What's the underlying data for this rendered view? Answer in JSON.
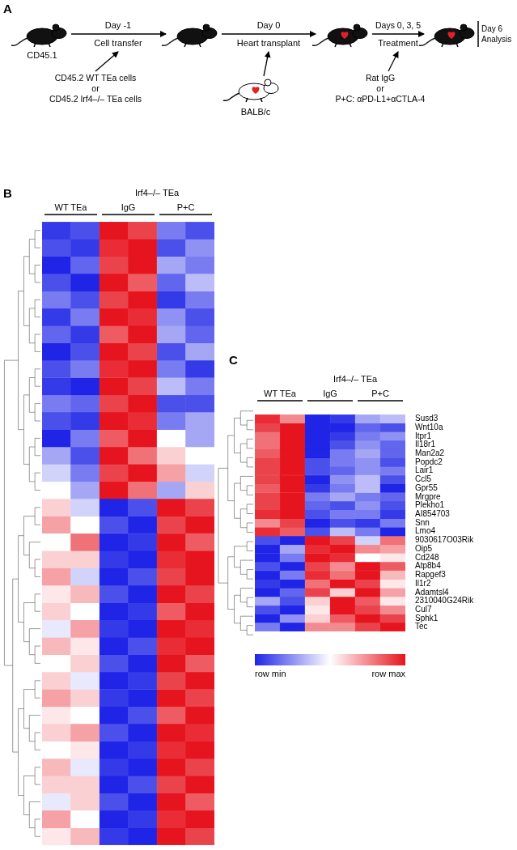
{
  "schematic": {
    "panel": "A",
    "start_mouse": "CD45.1",
    "transfer_day": "Day -1",
    "transfer": "Cell transfer",
    "cells": [
      "CD45.2 WT TEa cells",
      "or",
      "CD45.2 Irf4–/– TEa cells"
    ],
    "transplant_day": "Day 0",
    "transplant": "Heart transplant",
    "donor": "BALB/c",
    "treatment_days": "Days 0, 3, 5",
    "treatment": "Treatment",
    "treatments": [
      "Rat IgG",
      "or",
      "P+C: αPD-L1+αCTLA-4"
    ],
    "end": [
      "Day 6",
      "Analysis"
    ]
  },
  "color_scale": {
    "colors": [
      "#1f24e6",
      "#ffffff",
      "#e6141e"
    ],
    "range": [
      0,
      1
    ]
  },
  "chart_data": [
    {
      "type": "heatmap",
      "panel": "B",
      "tick_labels": false,
      "column_groups": [
        {
          "label": "WT TEa",
          "columns": 2
        },
        {
          "label": "Irf4–/– TEa",
          "subgroups": [
            {
              "label": "IgG",
              "columns": 2
            },
            {
              "label": "P+C",
              "columns": 2
            }
          ]
        }
      ],
      "row_clusters": [
        16,
        20
      ],
      "cells": [
        [
          0.05,
          0.1,
          1.0,
          0.9,
          0.2,
          0.1
        ],
        [
          0.1,
          0.05,
          0.95,
          1.0,
          0.1,
          0.25
        ],
        [
          0.0,
          0.15,
          0.9,
          1.0,
          0.3,
          0.2
        ],
        [
          0.1,
          0.0,
          1.0,
          0.85,
          0.15,
          0.35
        ],
        [
          0.2,
          0.1,
          0.9,
          1.0,
          0.05,
          0.2
        ],
        [
          0.05,
          0.2,
          1.0,
          0.95,
          0.25,
          0.1
        ],
        [
          0.15,
          0.05,
          0.85,
          1.0,
          0.3,
          0.15
        ],
        [
          0.0,
          0.1,
          1.0,
          0.9,
          0.1,
          0.3
        ],
        [
          0.1,
          0.2,
          0.95,
          1.0,
          0.2,
          0.05
        ],
        [
          0.05,
          0.0,
          1.0,
          0.9,
          0.35,
          0.2
        ],
        [
          0.2,
          0.15,
          0.9,
          1.0,
          0.1,
          0.1
        ],
        [
          0.1,
          0.05,
          1.0,
          0.95,
          0.2,
          0.3
        ],
        [
          0.0,
          0.2,
          0.85,
          1.0,
          0.5,
          0.3
        ],
        [
          0.3,
          0.1,
          1.0,
          0.8,
          0.6,
          0.5
        ],
        [
          0.4,
          0.2,
          0.9,
          1.0,
          0.7,
          0.4
        ],
        [
          0.5,
          0.3,
          1.0,
          0.8,
          0.3,
          0.6
        ],
        [
          0.6,
          0.4,
          0.0,
          0.1,
          1.0,
          0.9
        ],
        [
          0.7,
          0.5,
          0.1,
          0.0,
          0.9,
          1.0
        ],
        [
          0.5,
          0.8,
          0.0,
          0.05,
          1.0,
          0.85
        ],
        [
          0.6,
          0.6,
          0.05,
          0.0,
          0.95,
          1.0
        ],
        [
          0.7,
          0.4,
          0.0,
          0.1,
          0.9,
          1.0
        ],
        [
          0.55,
          0.65,
          0.1,
          0.0,
          1.0,
          0.9
        ],
        [
          0.6,
          0.5,
          0.0,
          0.05,
          0.85,
          1.0
        ],
        [
          0.45,
          0.7,
          0.05,
          0.0,
          1.0,
          0.95
        ],
        [
          0.65,
          0.55,
          0.0,
          0.1,
          0.95,
          1.0
        ],
        [
          0.5,
          0.6,
          0.1,
          0.0,
          1.0,
          0.85
        ],
        [
          0.6,
          0.45,
          0.0,
          0.05,
          0.9,
          1.0
        ],
        [
          0.7,
          0.6,
          0.05,
          0.0,
          1.0,
          0.9
        ],
        [
          0.55,
          0.5,
          0.0,
          0.1,
          0.85,
          1.0
        ],
        [
          0.6,
          0.7,
          0.1,
          0.0,
          1.0,
          0.95
        ],
        [
          0.5,
          0.55,
          0.0,
          0.05,
          0.95,
          1.0
        ],
        [
          0.65,
          0.45,
          0.05,
          0.0,
          1.0,
          0.9
        ],
        [
          0.6,
          0.6,
          0.0,
          0.1,
          0.9,
          1.0
        ],
        [
          0.45,
          0.6,
          0.1,
          0.0,
          1.0,
          0.85
        ],
        [
          0.7,
          0.5,
          0.0,
          0.05,
          0.95,
          1.0
        ],
        [
          0.55,
          0.65,
          0.05,
          0.0,
          1.0,
          0.9
        ]
      ]
    },
    {
      "type": "heatmap",
      "panel": "C",
      "tick_labels": "y",
      "column_groups": [
        {
          "label": "WT TEa",
          "columns": 2
        },
        {
          "label": "Irf4–/– TEa",
          "subgroups": [
            {
              "label": "IgG",
              "columns": 2
            },
            {
              "label": "P+C",
              "columns": 2
            }
          ]
        }
      ],
      "row_clusters": [
        14,
        11
      ],
      "rows": [
        "Susd3",
        "Wnt10a",
        "Itpr1",
        "Il18r1",
        "Man2a2",
        "Popdc2",
        "Lair1",
        "Ccl5",
        "Gpr55",
        "Mrgpre",
        "Plekho1",
        "AI854703",
        "Snn",
        "Lmo4",
        "9030617O03Rik",
        "Oip5",
        "Cd248",
        "Atp8b4",
        "Rapgef3",
        "Il1r2",
        "Adamtsl4",
        "2310040G24Rik",
        "Cul7",
        "Sphk1",
        "Tec"
      ],
      "cells": [
        [
          0.95,
          0.75,
          0.0,
          0.05,
          0.3,
          0.35
        ],
        [
          0.9,
          1.0,
          0.0,
          0.0,
          0.15,
          0.1
        ],
        [
          0.8,
          1.0,
          0.0,
          0.05,
          0.2,
          0.25
        ],
        [
          0.8,
          1.0,
          0.0,
          0.1,
          0.25,
          0.15
        ],
        [
          0.85,
          1.0,
          0.0,
          0.2,
          0.3,
          0.15
        ],
        [
          0.9,
          1.0,
          0.1,
          0.2,
          0.25,
          0.1
        ],
        [
          0.9,
          1.0,
          0.1,
          0.15,
          0.25,
          0.2
        ],
        [
          0.9,
          1.0,
          0.0,
          0.25,
          0.35,
          0.1
        ],
        [
          0.85,
          1.0,
          0.05,
          0.2,
          0.35,
          0.0
        ],
        [
          0.9,
          1.0,
          0.2,
          0.3,
          0.2,
          0.15
        ],
        [
          0.9,
          1.0,
          0.15,
          0.1,
          0.25,
          0.1
        ],
        [
          0.95,
          1.0,
          0.1,
          0.2,
          0.2,
          0.05
        ],
        [
          0.75,
          0.9,
          0.0,
          0.1,
          0.05,
          0.2
        ],
        [
          0.95,
          0.85,
          0.1,
          0.35,
          0.2,
          0.0
        ],
        [
          0.1,
          0.0,
          1.0,
          0.9,
          0.4,
          0.8
        ],
        [
          0.0,
          0.3,
          0.95,
          1.0,
          0.75,
          0.7
        ],
        [
          0.0,
          0.2,
          1.0,
          0.95,
          0.5,
          0.55
        ],
        [
          0.1,
          0.0,
          0.9,
          0.75,
          1.0,
          0.85
        ],
        [
          0.0,
          0.2,
          0.95,
          0.8,
          1.0,
          0.65
        ],
        [
          0.05,
          0.0,
          0.8,
          1.0,
          0.9,
          0.55
        ],
        [
          0.0,
          0.15,
          0.9,
          0.6,
          1.0,
          0.7
        ],
        [
          0.3,
          0.1,
          0.6,
          1.0,
          0.85,
          0.55
        ],
        [
          0.1,
          0.0,
          0.55,
          1.0,
          0.9,
          0.75
        ],
        [
          0.0,
          0.25,
          0.6,
          0.85,
          1.0,
          0.9
        ],
        [
          0.2,
          0.0,
          0.75,
          0.75,
          0.9,
          1.0
        ]
      ],
      "colorbar": {
        "low_label": "row min",
        "high_label": "row max"
      }
    }
  ]
}
